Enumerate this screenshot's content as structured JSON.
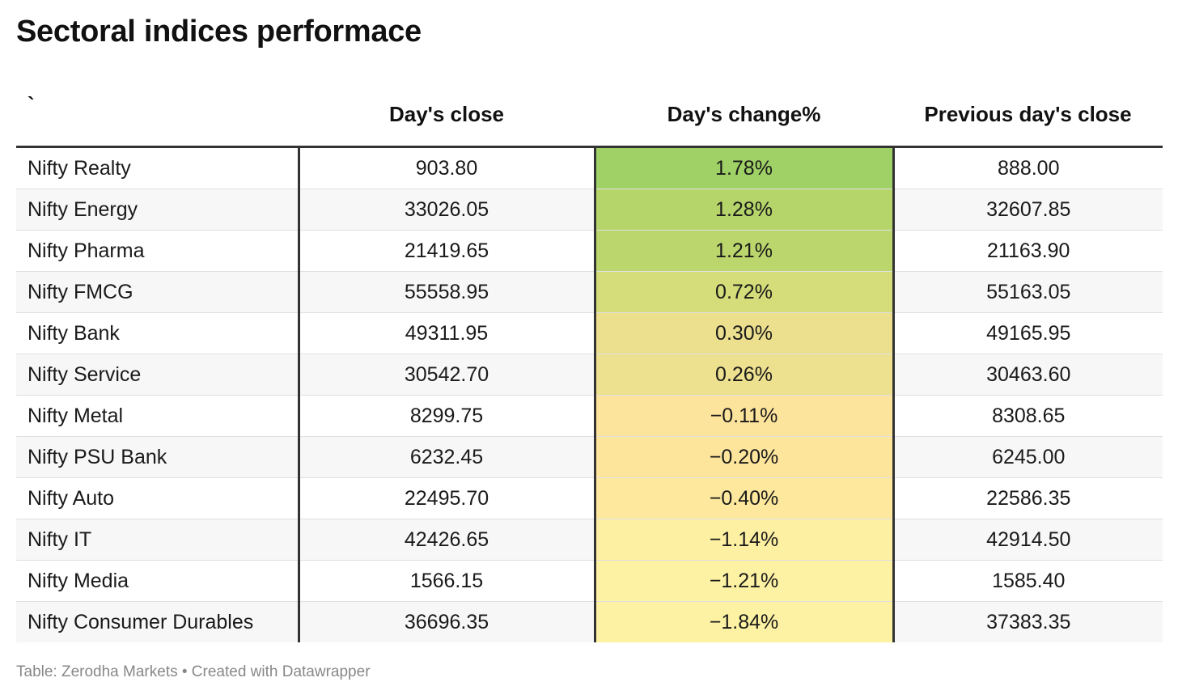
{
  "title": "Sectoral indices performace",
  "footer": "Table: Zerodha Markets • Created with Datawrapper",
  "chart_data": {
    "type": "table",
    "title": "Sectoral indices performace",
    "columns": [
      "`",
      "Day's close",
      "Day's change%",
      "Previous day's close"
    ],
    "rows": [
      {
        "name": "Nifty Realty",
        "close": "903.80",
        "change": "1.78%",
        "prev": "888.00",
        "color": "#9fd166"
      },
      {
        "name": "Nifty Energy",
        "close": "33026.05",
        "change": "1.28%",
        "prev": "32607.85",
        "color": "#b5d56b"
      },
      {
        "name": "Nifty Pharma",
        "close": "21419.65",
        "change": "1.21%",
        "prev": "21163.90",
        "color": "#bad66c"
      },
      {
        "name": "Nifty FMCG",
        "close": "55558.95",
        "change": "0.72%",
        "prev": "55163.05",
        "color": "#d4dd7a"
      },
      {
        "name": "Nifty Bank",
        "close": "49311.95",
        "change": "0.30%",
        "prev": "49165.95",
        "color": "#ece08f"
      },
      {
        "name": "Nifty Service",
        "close": "30542.70",
        "change": "0.26%",
        "prev": "30463.60",
        "color": "#ede08f"
      },
      {
        "name": "Nifty Metal",
        "close": "8299.75",
        "change": "−0.11%",
        "prev": "8308.65",
        "color": "#fde49c"
      },
      {
        "name": "Nifty PSU Bank",
        "close": "6232.45",
        "change": "−0.20%",
        "prev": "6245.00",
        "color": "#fde59c"
      },
      {
        "name": "Nifty Auto",
        "close": "22495.70",
        "change": "−0.40%",
        "prev": "22586.35",
        "color": "#fde89e"
      },
      {
        "name": "Nifty IT",
        "close": "42426.65",
        "change": "−1.14%",
        "prev": "42914.50",
        "color": "#fdf0a2"
      },
      {
        "name": "Nifty Media",
        "close": "1566.15",
        "change": "−1.21%",
        "prev": "1585.40",
        "color": "#fdf1a3"
      },
      {
        "name": "Nifty Consumer Durables",
        "close": "36696.35",
        "change": "−1.84%",
        "prev": "37383.35",
        "color": "#fdf2a3"
      }
    ]
  }
}
